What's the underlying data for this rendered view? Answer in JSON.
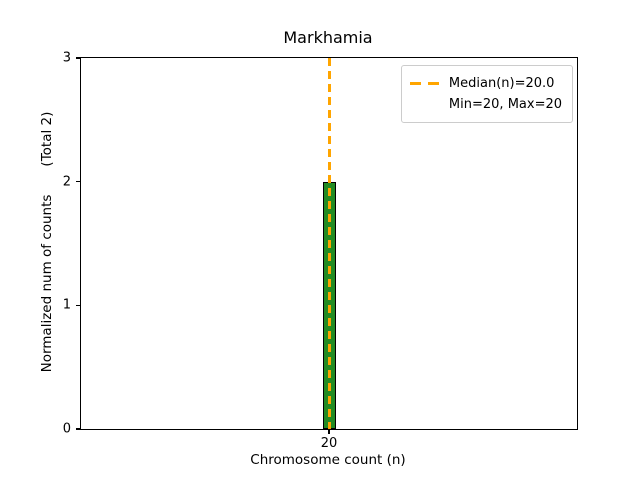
{
  "chart_data": {
    "type": "bar",
    "title": "Markhamia",
    "xlabel": "Chromosome count (n)",
    "ylabel": "Normalized num of counts",
    "ylabel_annotation": "(Total 2)",
    "categories": [
      "20"
    ],
    "values": [
      2
    ],
    "total_counts": 2,
    "ylim": [
      0,
      3
    ],
    "yticks": [
      "0",
      "1",
      "2",
      "3"
    ],
    "xticks": [
      "20"
    ],
    "grid": false,
    "bar_color": "#228B22",
    "bar_edge_color": "#000000",
    "median_line": {
      "x": 20,
      "color": "#FFA500",
      "style": "dashed"
    },
    "legend": {
      "position": "upper-right",
      "entries": [
        {
          "handle": "orange-dashed-line",
          "label": "Median(n)=20.0"
        },
        {
          "handle": "none",
          "label": "Min=20, Max=20"
        }
      ]
    }
  }
}
